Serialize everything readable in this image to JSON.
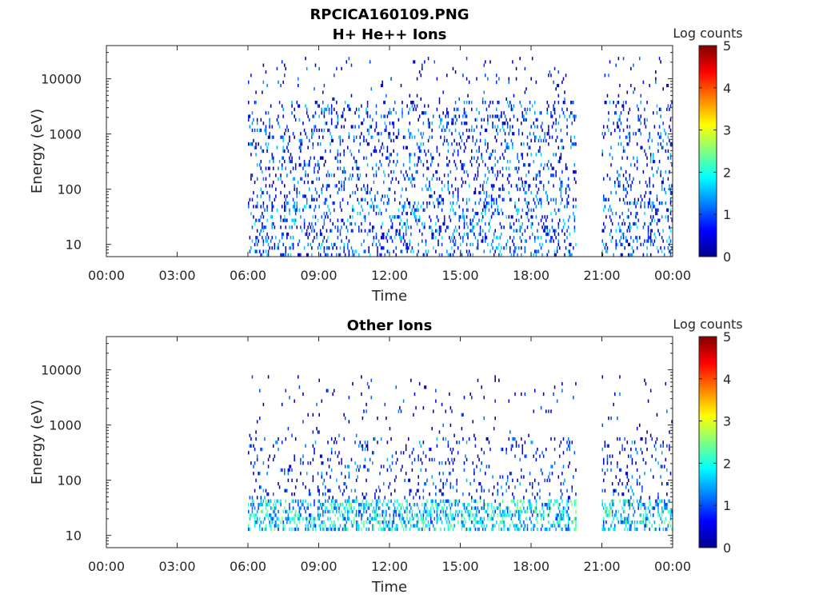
{
  "figure": {
    "filename": "RPCICA160109.PNG"
  },
  "colormap": {
    "name": "jet",
    "stops": [
      "#00008f",
      "#0000ff",
      "#0080ff",
      "#00ffff",
      "#80ff80",
      "#ffff00",
      "#ff8000",
      "#ff0000",
      "#800000"
    ]
  },
  "chart_data": [
    {
      "type": "heatmap",
      "title": "H+ He++ Ions",
      "xlabel": "Time",
      "ylabel": "Energy (eV)",
      "y_scale": "log",
      "ylim": [
        6,
        40000
      ],
      "x_range_hours": [
        0,
        24
      ],
      "x_tick_values": [
        0,
        3,
        6,
        9,
        12,
        15,
        18,
        21,
        24
      ],
      "x_tick_labels": [
        "00:00",
        "03:00",
        "06:00",
        "09:00",
        "12:00",
        "15:00",
        "18:00",
        "21:00",
        "00:00"
      ],
      "y_tick_values": [
        10,
        100,
        1000,
        10000
      ],
      "y_tick_labels": [
        "10",
        "100",
        "1000",
        "10000"
      ],
      "colorbar": {
        "label": "Log counts",
        "range": [
          0,
          5
        ],
        "ticks": [
          "0",
          "1",
          "2",
          "3",
          "4",
          "5"
        ]
      },
      "data_intervals_hours": [
        [
          6.0,
          19.9
        ],
        [
          21.0,
          23.95
        ]
      ],
      "activity": [
        {
          "energy_eV": [
            6,
            60
          ],
          "density": 0.35,
          "mean_log_counts": 0.9
        },
        {
          "energy_eV": [
            60,
            4000
          ],
          "density": 0.28,
          "mean_log_counts": 0.7
        },
        {
          "energy_eV": [
            4000,
            25000
          ],
          "density": 0.06,
          "mean_log_counts": 0.4
        }
      ]
    },
    {
      "type": "heatmap",
      "title": "Other Ions",
      "xlabel": "Time",
      "ylabel": "Energy (eV)",
      "y_scale": "log",
      "ylim": [
        6,
        40000
      ],
      "x_range_hours": [
        0,
        24
      ],
      "x_tick_values": [
        0,
        3,
        6,
        9,
        12,
        15,
        18,
        21,
        24
      ],
      "x_tick_labels": [
        "00:00",
        "03:00",
        "06:00",
        "09:00",
        "12:00",
        "15:00",
        "18:00",
        "21:00",
        "00:00"
      ],
      "y_tick_values": [
        10,
        100,
        1000,
        10000
      ],
      "y_tick_labels": [
        "10",
        "100",
        "1000",
        "10000"
      ],
      "colorbar": {
        "label": "Log counts",
        "range": [
          0,
          5
        ],
        "ticks": [
          "0",
          "1",
          "2",
          "3",
          "4",
          "5"
        ]
      },
      "data_intervals_hours": [
        [
          6.0,
          19.9
        ],
        [
          21.0,
          23.95
        ]
      ],
      "activity": [
        {
          "energy_eV": [
            12,
            45
          ],
          "density": 0.7,
          "mean_log_counts": 1.6
        },
        {
          "energy_eV": [
            45,
            600
          ],
          "density": 0.18,
          "mean_log_counts": 0.6
        },
        {
          "energy_eV": [
            600,
            8000
          ],
          "density": 0.04,
          "mean_log_counts": 0.3
        }
      ]
    }
  ]
}
